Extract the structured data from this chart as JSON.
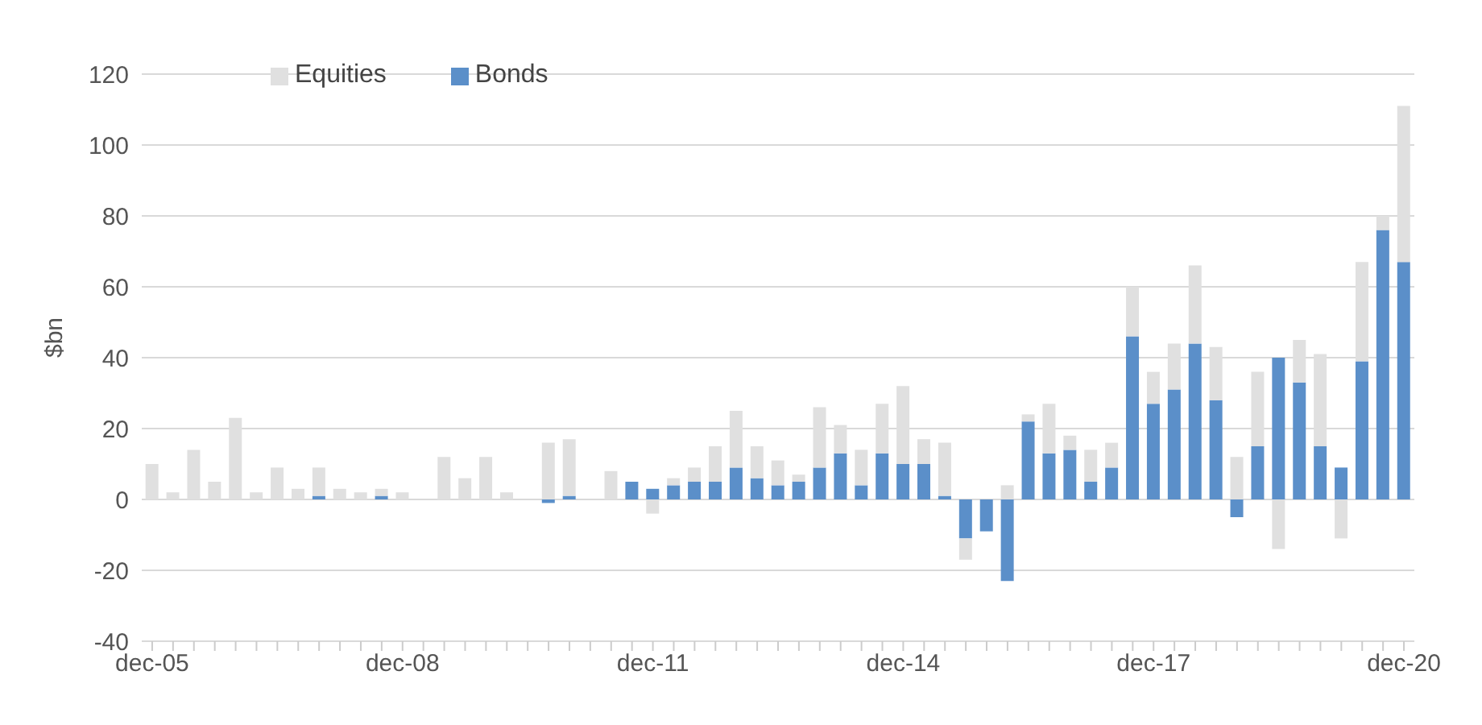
{
  "chart_data": {
    "type": "bar",
    "stacked": true,
    "ylabel": "$bn",
    "ylim": [
      -40,
      120
    ],
    "yticks": [
      -40,
      -20,
      0,
      20,
      40,
      60,
      80,
      100,
      120
    ],
    "grid": "y",
    "legend": "top left",
    "categories": [
      "dec-05",
      null,
      null,
      null,
      null,
      null,
      null,
      null,
      null,
      null,
      null,
      null,
      "dec-08",
      null,
      null,
      null,
      null,
      null,
      null,
      null,
      null,
      null,
      null,
      null,
      "dec-11",
      null,
      null,
      null,
      null,
      null,
      null,
      null,
      null,
      null,
      null,
      null,
      "dec-14",
      null,
      null,
      null,
      null,
      null,
      null,
      null,
      null,
      null,
      null,
      null,
      "dec-17",
      null,
      null,
      null,
      null,
      null,
      null,
      null,
      null,
      null,
      null,
      null,
      "dec-20"
    ],
    "series": [
      {
        "name": "Bonds",
        "color": "#5b8fc9",
        "values": [
          0,
          0,
          0,
          0,
          0,
          0,
          0,
          0,
          1,
          0,
          0,
          1,
          0,
          0,
          0,
          0,
          0,
          0,
          0,
          -1,
          1,
          0,
          0,
          5,
          3,
          4,
          5,
          5,
          9,
          6,
          4,
          5,
          9,
          13,
          4,
          13,
          10,
          10,
          1,
          -11,
          -9,
          -23,
          22,
          13,
          14,
          5,
          9,
          46,
          27,
          31,
          44,
          28,
          -5,
          15,
          40,
          33,
          15,
          9,
          39,
          76,
          67
        ]
      },
      {
        "name": "Equities",
        "color": "#e0e0e0",
        "values": [
          10,
          2,
          14,
          5,
          23,
          2,
          9,
          3,
          8,
          3,
          2,
          2,
          2,
          0,
          12,
          6,
          12,
          2,
          0,
          16,
          16,
          0,
          8,
          0,
          -4,
          2,
          4,
          10,
          16,
          9,
          7,
          2,
          17,
          8,
          10,
          14,
          22,
          7,
          15,
          -6,
          0,
          4,
          2,
          14,
          4,
          9,
          7,
          14,
          9,
          13,
          22,
          15,
          12,
          21,
          -14,
          12,
          26,
          -11,
          28,
          4,
          44
        ]
      }
    ]
  }
}
